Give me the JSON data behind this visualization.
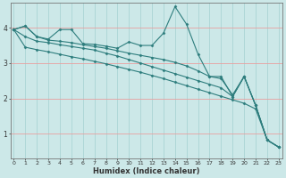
{
  "xlabel": "Humidex (Indice chaleur)",
  "bg_color": "#cce8e8",
  "line_color": "#2d7d7d",
  "grid_color_h": "#e8a0a0",
  "grid_color_v": "#aad4d4",
  "x_ticks": [
    0,
    1,
    2,
    3,
    4,
    5,
    6,
    7,
    8,
    9,
    10,
    11,
    12,
    13,
    14,
    15,
    16,
    17,
    18,
    19,
    20,
    21,
    22,
    23
  ],
  "y_ticks": [
    1,
    2,
    3,
    4
  ],
  "ylim": [
    0.3,
    4.7
  ],
  "xlim": [
    -0.3,
    23.3
  ],
  "lines": [
    [
      3.95,
      4.05,
      3.75,
      3.68,
      3.95,
      3.95,
      3.55,
      3.53,
      3.48,
      3.42,
      3.6,
      3.5,
      3.5,
      3.85,
      4.6,
      4.1,
      3.25,
      2.62,
      2.62,
      2.05,
      2.62,
      1.8,
      0.82,
      0.62
    ],
    [
      3.95,
      4.05,
      3.75,
      3.65,
      3.62,
      3.58,
      3.52,
      3.47,
      3.42,
      3.35,
      3.28,
      3.22,
      3.16,
      3.1,
      3.02,
      2.92,
      2.78,
      2.62,
      2.56,
      2.1,
      2.62,
      1.8,
      0.82,
      0.62
    ],
    [
      3.95,
      3.75,
      3.62,
      3.58,
      3.52,
      3.47,
      3.42,
      3.37,
      3.28,
      3.2,
      3.1,
      3.0,
      2.9,
      2.8,
      2.7,
      2.6,
      2.5,
      2.4,
      2.3,
      2.05,
      2.62,
      1.8,
      0.82,
      0.62
    ],
    [
      3.95,
      3.45,
      3.38,
      3.32,
      3.25,
      3.18,
      3.12,
      3.05,
      2.98,
      2.9,
      2.82,
      2.74,
      2.65,
      2.56,
      2.46,
      2.36,
      2.26,
      2.16,
      2.06,
      1.96,
      1.86,
      1.7,
      0.82,
      0.62
    ]
  ]
}
